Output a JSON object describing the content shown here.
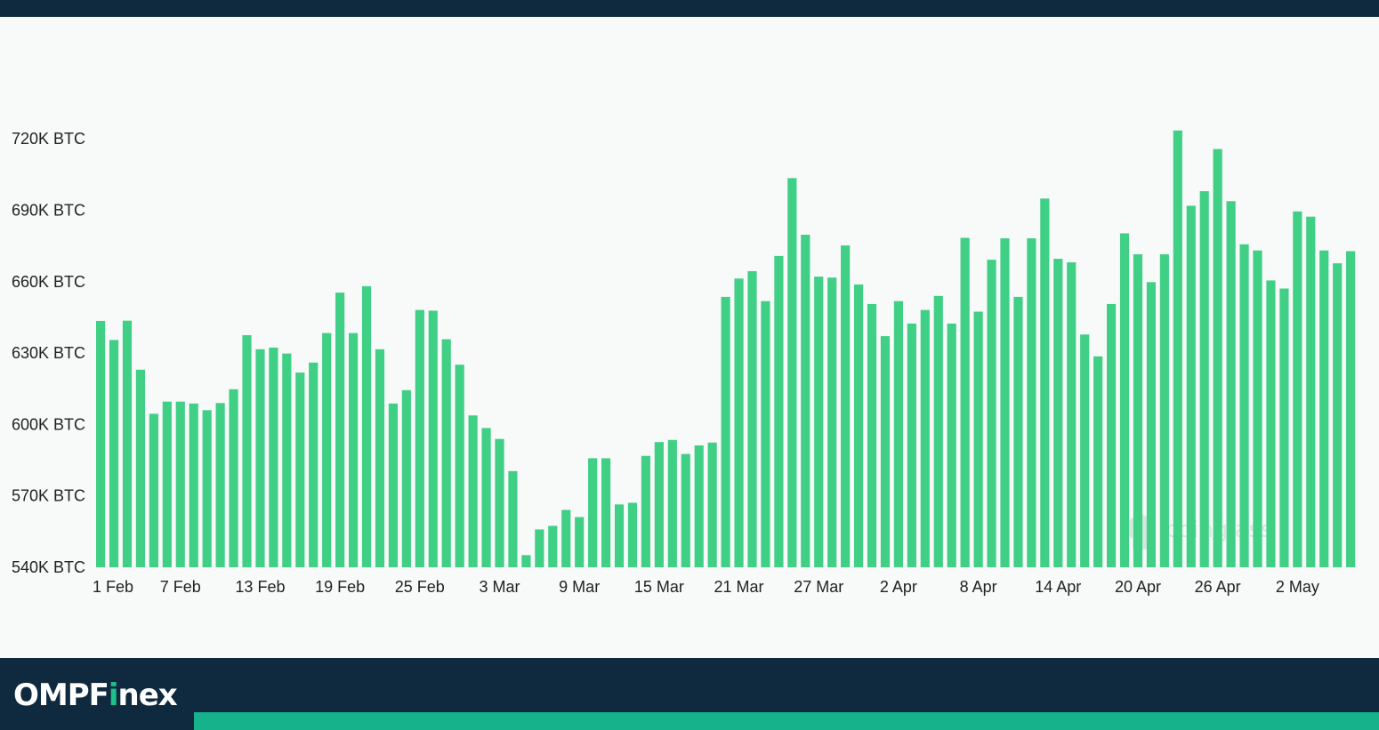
{
  "brand": {
    "name_prefix": "OMPF",
    "name_accent": "i",
    "name_suffix": "nex"
  },
  "watermark": "coinglass",
  "colors": {
    "bar": "#3fcf85",
    "background": "#f8f9f9",
    "frame": "#0f2a3f",
    "footer_accent": "#16b28c"
  },
  "chart_data": {
    "type": "bar",
    "ylim": [
      540,
      735
    ],
    "yticks": [
      540,
      570,
      600,
      630,
      660,
      690,
      720
    ],
    "ytick_labels": [
      "540K BTC",
      "570K BTC",
      "600K BTC",
      "630K BTC",
      "660K BTC",
      "690K BTC",
      "720K BTC"
    ],
    "xtick_labels": [
      "1 Feb",
      "7 Feb",
      "13 Feb",
      "19 Feb",
      "25 Feb",
      "3 Mar",
      "9 Mar",
      "15 Mar",
      "21 Mar",
      "27 Mar",
      "2 Apr",
      "8 Apr",
      "14 Apr",
      "20 Apr",
      "26 Apr",
      "2 May"
    ],
    "xtick_every": 6,
    "grid": false,
    "categories": [
      "1 Feb",
      "2 Feb",
      "3 Feb",
      "4 Feb",
      "5 Feb",
      "6 Feb",
      "7 Feb",
      "8 Feb",
      "9 Feb",
      "10 Feb",
      "11 Feb",
      "12 Feb",
      "13 Feb",
      "14 Feb",
      "15 Feb",
      "16 Feb",
      "17 Feb",
      "18 Feb",
      "19 Feb",
      "20 Feb",
      "21 Feb",
      "22 Feb",
      "23 Feb",
      "24 Feb",
      "25 Feb",
      "26 Feb",
      "27 Feb",
      "28 Feb",
      "29 Feb",
      "1 Mar",
      "2 Mar",
      "3 Mar",
      "4 Mar",
      "5 Mar",
      "6 Mar",
      "7 Mar",
      "8 Mar",
      "9 Mar",
      "10 Mar",
      "11 Mar",
      "12 Mar",
      "13 Mar",
      "14 Mar",
      "15 Mar",
      "16 Mar",
      "17 Mar",
      "18 Mar",
      "19 Mar",
      "20 Mar",
      "21 Mar",
      "22 Mar",
      "23 Mar",
      "24 Mar",
      "25 Mar",
      "26 Mar",
      "27 Mar",
      "28 Mar",
      "29 Mar",
      "30 Mar",
      "31 Mar",
      "1 Apr",
      "2 Apr",
      "3 Apr",
      "4 Apr",
      "5 Apr",
      "6 Apr",
      "7 Apr",
      "8 Apr",
      "9 Apr",
      "10 Apr",
      "11 Apr",
      "12 Apr",
      "13 Apr",
      "14 Apr",
      "15 Apr",
      "16 Apr",
      "17 Apr",
      "18 Apr",
      "19 Apr",
      "20 Apr",
      "21 Apr",
      "22 Apr",
      "23 Apr",
      "24 Apr",
      "25 Apr",
      "26 Apr",
      "27 Apr",
      "28 Apr",
      "29 Apr",
      "30 Apr",
      "1 May",
      "2 May",
      "3 May",
      "4 May",
      "5 May"
    ],
    "values": [
      643.5,
      635.5,
      643.6,
      623,
      604.5,
      609.6,
      609.6,
      608.8,
      606,
      609,
      614.8,
      637.5,
      631.6,
      632.3,
      629.8,
      621.8,
      626,
      638.4,
      655.4,
      638.4,
      658.1,
      631.6,
      608.8,
      614.4,
      648.1,
      647.8,
      635.8,
      625.1,
      603.8,
      598.5,
      593.9,
      580.4,
      545.1,
      555.9,
      557.4,
      564.1,
      561.1,
      585.8,
      585.8,
      566.4,
      567.1,
      586.8,
      592.6,
      593.5,
      587.6,
      591.2,
      592.4,
      653.6,
      661.3,
      664.4,
      651.8,
      670.8,
      703.5,
      679.7,
      662.1,
      661.7,
      675.2,
      658.8,
      650.6,
      637.1,
      651.8,
      642.4,
      648.1,
      654,
      642.4,
      678.4,
      647.4,
      669.2,
      678.2,
      653.6,
      678.2,
      694.9,
      669.6,
      668.1,
      637.8,
      628.6,
      650.6,
      680.3,
      671.5,
      659.8,
      671.5,
      723.5,
      691.9,
      698,
      715.7,
      693.8,
      675.7,
      673.1,
      660.5,
      657.1,
      689.5,
      687.3,
      673.1,
      667.7,
      672.8
    ]
  }
}
